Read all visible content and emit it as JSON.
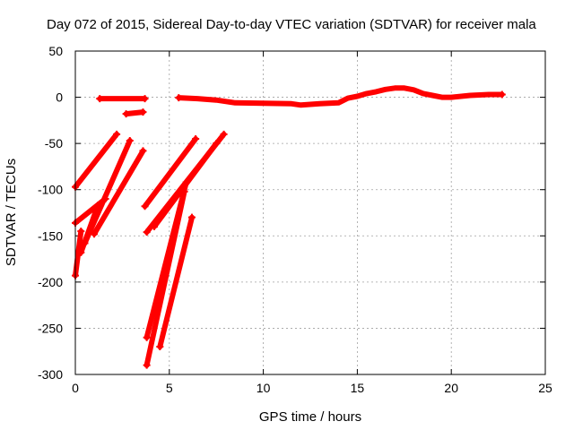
{
  "chart_data": {
    "type": "scatter",
    "title": "Day 072 of 2015, Sidereal Day-to-day VTEC variation (SDTVAR) for receiver mala",
    "xlabel": "GPS time / hours",
    "ylabel": "SDTVAR / TECUs",
    "xlim": [
      0,
      25
    ],
    "ylim": [
      -300,
      50
    ],
    "xticks": [
      0,
      5,
      10,
      15,
      20,
      25
    ],
    "yticks": [
      50,
      0,
      -50,
      -100,
      -150,
      -200,
      -250,
      -300
    ],
    "grid": true,
    "marker": "+",
    "color": "#ff0000",
    "series": [
      {
        "x": [
          1.3,
          3.7
        ],
        "y": [
          -1.5,
          -1.5
        ]
      },
      {
        "x": [
          2.7,
          3.6
        ],
        "y": [
          -18,
          -16
        ]
      },
      {
        "x": [
          5.5,
          6.5,
          7.5,
          8.5,
          10.0,
          11.5,
          12.0,
          13.0,
          14.0,
          14.5,
          15.0,
          15.5,
          16.0,
          16.5,
          17.0,
          17.5,
          18.0,
          18.5,
          19.0,
          19.5,
          20.0,
          21.0,
          22.0,
          22.7
        ],
        "y": [
          -0.5,
          -1.5,
          -3,
          -6,
          -6.5,
          -7,
          -8.5,
          -7,
          -6,
          -1,
          1,
          4,
          6,
          8.5,
          10,
          10,
          8,
          4,
          2,
          0,
          0,
          2,
          3,
          3
        ]
      },
      {
        "x": [
          0,
          2.2
        ],
        "y": [
          -97,
          -40
        ]
      },
      {
        "x": [
          0,
          1.6
        ],
        "y": [
          -136,
          -110
        ]
      },
      {
        "x": [
          0.5,
          2.9
        ],
        "y": [
          -158,
          -47
        ]
      },
      {
        "x": [
          1.0,
          3.6
        ],
        "y": [
          -148,
          -58
        ]
      },
      {
        "x": [
          0.0,
          0.3
        ],
        "y": [
          -193,
          -145
        ]
      },
      {
        "x": [
          0.3,
          1.2
        ],
        "y": [
          -168,
          -117
        ]
      },
      {
        "x": [
          3.7,
          6.4
        ],
        "y": [
          -118,
          -45
        ]
      },
      {
        "x": [
          3.8,
          7.9
        ],
        "y": [
          -146,
          -40
        ]
      },
      {
        "x": [
          4.2,
          7.5
        ],
        "y": [
          -140,
          -50
        ]
      },
      {
        "x": [
          3.8,
          5.9
        ],
        "y": [
          -260,
          -92
        ]
      },
      {
        "x": [
          3.8,
          5.8
        ],
        "y": [
          -290,
          -102
        ]
      },
      {
        "x": [
          4.5,
          6.2
        ],
        "y": [
          -270,
          -130
        ]
      }
    ]
  }
}
